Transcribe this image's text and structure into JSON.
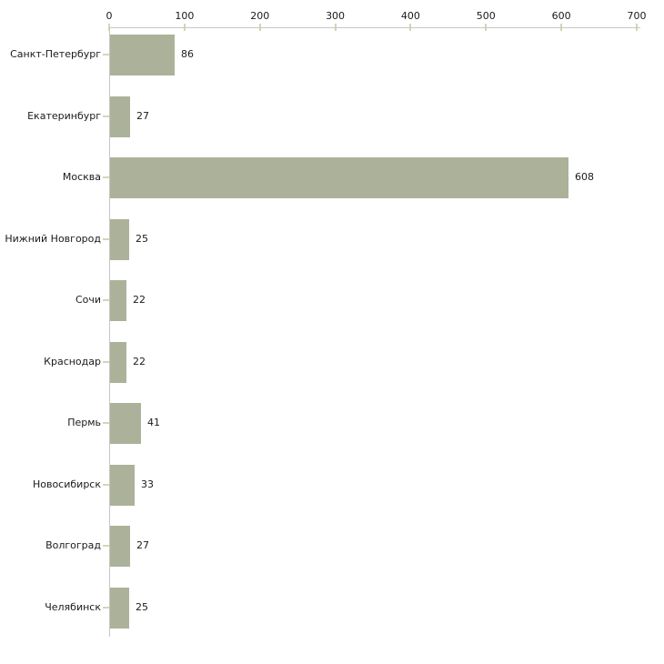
{
  "chart_data": {
    "type": "bar",
    "orientation": "horizontal",
    "title": "",
    "xlabel": "",
    "ylabel": "",
    "categories": [
      "Санкт-Петербург",
      "Екатеринбург",
      "Москва",
      "Нижний Новгород",
      "Сочи",
      "Краснодар",
      "Пермь",
      "Новосибирск",
      "Волгоград",
      "Челябинск"
    ],
    "values": [
      86,
      27,
      608,
      25,
      22,
      22,
      41,
      33,
      27,
      25
    ],
    "value_labels": [
      "86",
      "27",
      "608",
      "25",
      "22",
      "22",
      "41",
      "33",
      "27",
      "25"
    ],
    "x_ticks": [
      0,
      100,
      200,
      300,
      400,
      500,
      600,
      700
    ],
    "x_tick_labels": [
      "0",
      "100",
      "200",
      "300",
      "400",
      "500",
      "600",
      "700"
    ],
    "xlim": [
      0,
      700
    ],
    "grid": false,
    "legend": false,
    "axis_position": "top-left",
    "colors": {
      "bar_fill": "#acb299",
      "axis_line": "#c6c6c6",
      "tick_mark": "#d4d6b4",
      "text": "#1a1a1a",
      "background": "#ffffff"
    }
  }
}
